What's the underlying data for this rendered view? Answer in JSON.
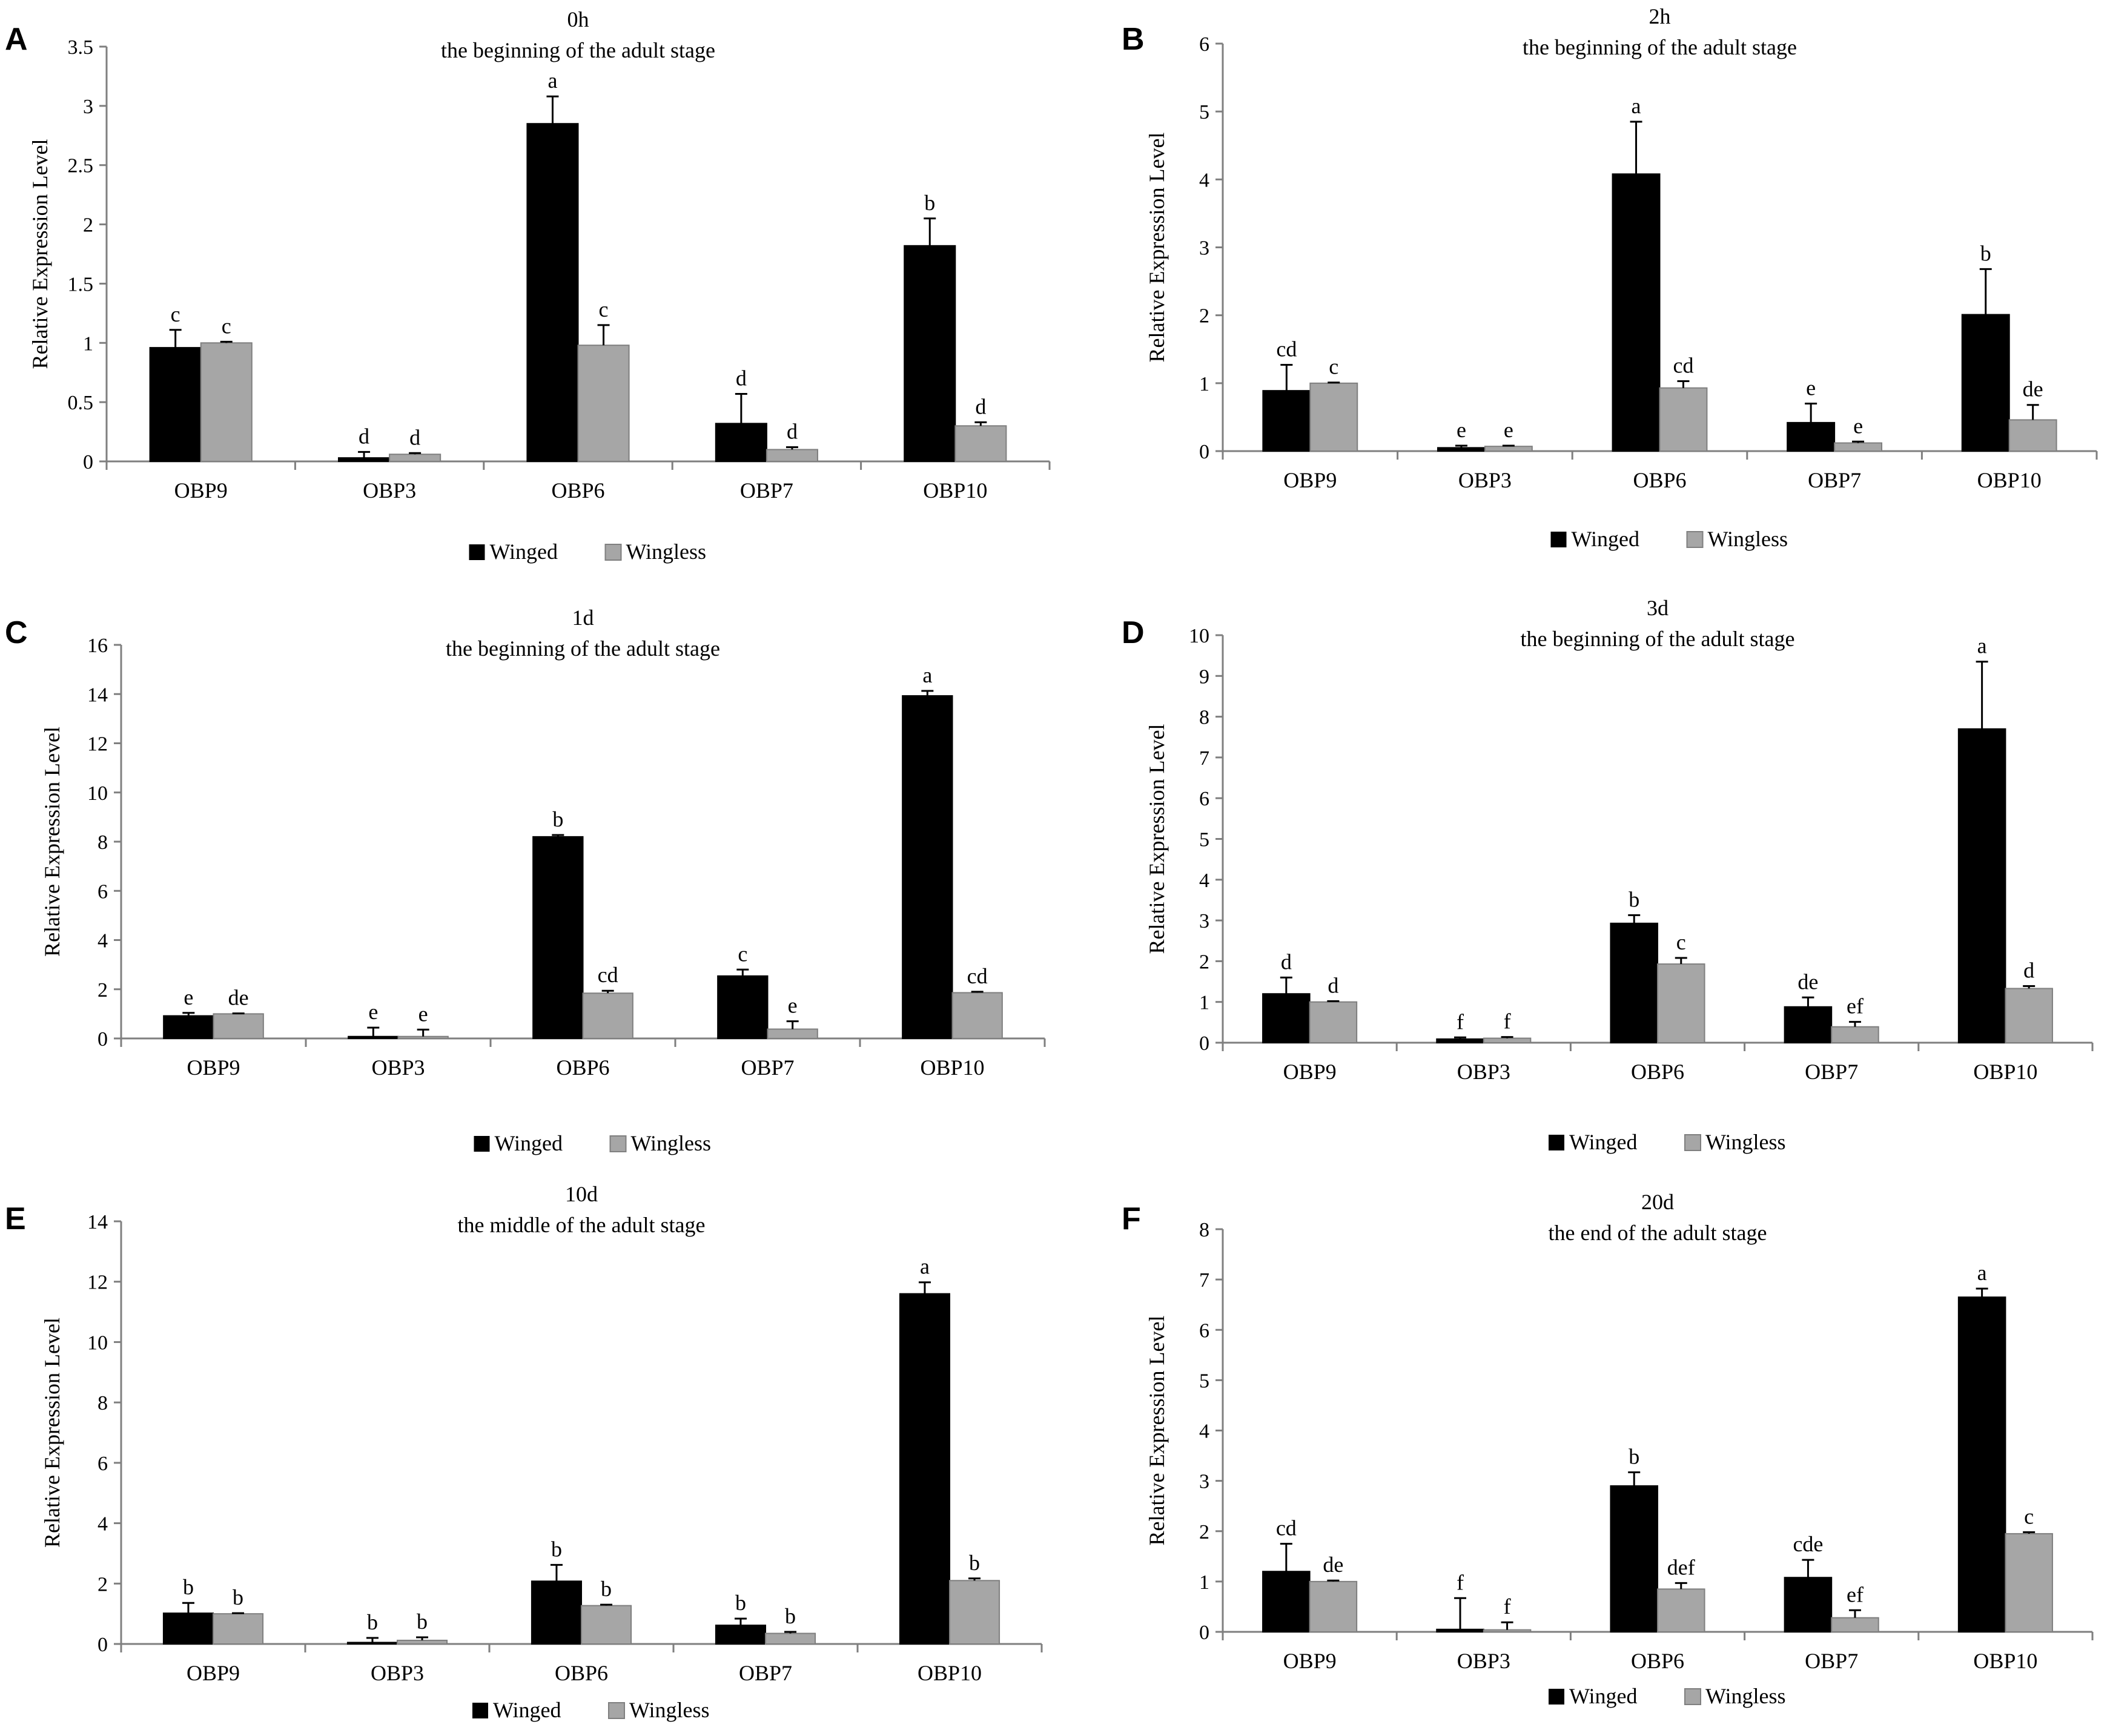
{
  "colors": {
    "winged": "#000000",
    "wingless": "#a6a6a6",
    "axis": "#7f7f7f"
  },
  "legend_labels": [
    "Winged",
    "Wingless"
  ],
  "chart_data": [
    {
      "type": "bar",
      "panel": "A",
      "title": "0h",
      "subtitle": "the beginning of the adult stage",
      "ylabel": "Relative Expression Level",
      "ylim": [
        0,
        3.5
      ],
      "yticks": [
        0,
        0.5,
        1,
        1.5,
        2,
        2.5,
        3,
        3.5
      ],
      "ytick_labels": [
        "0",
        "0.5",
        "1",
        "1.5",
        "2",
        "2.5",
        "3",
        "3.5"
      ],
      "categories": [
        "OBP9",
        "OBP3",
        "OBP6",
        "OBP7",
        "OBP10"
      ],
      "series": [
        {
          "name": "Winged",
          "values": [
            0.96,
            0.03,
            2.85,
            0.32,
            1.82
          ],
          "errors": [
            0.15,
            0.05,
            0.23,
            0.25,
            0.23
          ],
          "letters": [
            "c",
            "d",
            "a",
            "d",
            "b"
          ]
        },
        {
          "name": "Wingless",
          "values": [
            1.0,
            0.06,
            0.98,
            0.1,
            0.3
          ],
          "errors": [
            0.01,
            0.01,
            0.17,
            0.02,
            0.03
          ],
          "letters": [
            "c",
            "d",
            "c",
            "d",
            "d"
          ]
        }
      ],
      "legend": "bottom"
    },
    {
      "type": "bar",
      "panel": "B",
      "title": "2h",
      "subtitle": "the beginning of the adult stage",
      "ylabel": "Relative Expression Level",
      "ylim": [
        0,
        6
      ],
      "yticks": [
        0,
        1,
        2,
        3,
        4,
        5,
        6
      ],
      "ytick_labels": [
        "0",
        "1",
        "2",
        "3",
        "4",
        "5",
        "6"
      ],
      "categories": [
        "OBP9",
        "OBP3",
        "OBP6",
        "OBP7",
        "OBP10"
      ],
      "series": [
        {
          "name": "Winged",
          "values": [
            0.89,
            0.05,
            4.08,
            0.42,
            2.01
          ],
          "errors": [
            0.38,
            0.03,
            0.77,
            0.28,
            0.67
          ],
          "letters": [
            "cd",
            "e",
            "a",
            "e",
            "b"
          ]
        },
        {
          "name": "Wingless",
          "values": [
            1.0,
            0.07,
            0.93,
            0.12,
            0.46
          ],
          "errors": [
            0.01,
            0.01,
            0.1,
            0.02,
            0.22
          ],
          "letters": [
            "c",
            "e",
            "cd",
            "e",
            "de"
          ]
        }
      ],
      "legend": "bottom"
    },
    {
      "type": "bar",
      "panel": "C",
      "title": "1d",
      "subtitle": "the beginning of the adult stage",
      "ylabel": "Relative Expression Level",
      "ylim": [
        0,
        16
      ],
      "yticks": [
        0,
        2,
        4,
        6,
        8,
        10,
        12,
        14,
        16
      ],
      "ytick_labels": [
        "0",
        "2",
        "4",
        "6",
        "8",
        "10",
        "12",
        "14",
        "16"
      ],
      "categories": [
        "OBP9",
        "OBP3",
        "OBP6",
        "OBP7",
        "OBP10"
      ],
      "series": [
        {
          "name": "Winged",
          "values": [
            0.92,
            0.08,
            8.2,
            2.54,
            13.93
          ],
          "errors": [
            0.12,
            0.36,
            0.07,
            0.26,
            0.2
          ],
          "letters": [
            "e",
            "e",
            "b",
            "c",
            "a"
          ]
        },
        {
          "name": "Wingless",
          "values": [
            1.0,
            0.08,
            1.84,
            0.38,
            1.86
          ],
          "errors": [
            0.02,
            0.28,
            0.1,
            0.32,
            0.04
          ],
          "letters": [
            "de",
            "e",
            "cd",
            "e",
            "cd"
          ]
        }
      ],
      "legend": "bottom"
    },
    {
      "type": "bar",
      "panel": "D",
      "title": "3d",
      "subtitle": "the beginning of the adult stage",
      "ylabel": "Relative Expression Level",
      "ylim": [
        0,
        10
      ],
      "yticks": [
        0,
        1,
        2,
        3,
        4,
        5,
        6,
        7,
        8,
        9,
        10
      ],
      "ytick_labels": [
        "0",
        "1",
        "2",
        "3",
        "4",
        "5",
        "6",
        "7",
        "8",
        "9",
        "10"
      ],
      "categories": [
        "OBP9",
        "OBP3",
        "OBP6",
        "OBP7",
        "OBP10"
      ],
      "series": [
        {
          "name": "Winged",
          "values": [
            1.2,
            0.09,
            2.93,
            0.88,
            7.7
          ],
          "errors": [
            0.4,
            0.04,
            0.2,
            0.23,
            1.65
          ],
          "letters": [
            "d",
            "f",
            "b",
            "de",
            "a"
          ]
        },
        {
          "name": "Wingless",
          "values": [
            1.0,
            0.11,
            1.93,
            0.39,
            1.33
          ],
          "errors": [
            0.02,
            0.03,
            0.15,
            0.12,
            0.06
          ],
          "letters": [
            "d",
            "f",
            "c",
            "ef",
            "d"
          ]
        }
      ],
      "legend": "bottom"
    },
    {
      "type": "bar",
      "panel": "E",
      "title": "10d",
      "subtitle": "the middle of the adult stage",
      "ylabel": "Relative Expression Level",
      "ylim": [
        0,
        14
      ],
      "yticks": [
        0,
        2,
        4,
        6,
        8,
        10,
        12,
        14
      ],
      "ytick_labels": [
        "0",
        "2",
        "4",
        "6",
        "8",
        "10",
        "12",
        "14"
      ],
      "categories": [
        "OBP9",
        "OBP3",
        "OBP6",
        "OBP7",
        "OBP10"
      ],
      "series": [
        {
          "name": "Winged",
          "values": [
            1.02,
            0.05,
            2.08,
            0.62,
            11.6
          ],
          "errors": [
            0.34,
            0.15,
            0.54,
            0.22,
            0.38
          ],
          "letters": [
            "b",
            "b",
            "b",
            "b",
            "a"
          ]
        },
        {
          "name": "Wingless",
          "values": [
            1.0,
            0.12,
            1.27,
            0.35,
            2.1
          ],
          "errors": [
            0.02,
            0.1,
            0.03,
            0.05,
            0.07
          ],
          "letters": [
            "b",
            "b",
            "b",
            "b",
            "b"
          ]
        }
      ],
      "legend": "bottom"
    },
    {
      "type": "bar",
      "panel": "F",
      "title": "20d",
      "subtitle": "the end of the adult stage",
      "ylabel": "Relative Expression Level",
      "ylim": [
        0,
        8
      ],
      "yticks": [
        0,
        1,
        2,
        3,
        4,
        5,
        6,
        7,
        8
      ],
      "ytick_labels": [
        "0",
        "1",
        "2",
        "3",
        "4",
        "5",
        "6",
        "7",
        "8"
      ],
      "categories": [
        "OBP9",
        "OBP3",
        "OBP6",
        "OBP7",
        "OBP10"
      ],
      "series": [
        {
          "name": "Winged",
          "values": [
            1.2,
            0.05,
            2.9,
            1.08,
            6.65
          ],
          "errors": [
            0.55,
            0.62,
            0.27,
            0.35,
            0.17
          ],
          "letters": [
            "cd",
            "f",
            "b",
            "cde",
            "a"
          ]
        },
        {
          "name": "Wingless",
          "values": [
            1.0,
            0.04,
            0.85,
            0.28,
            1.95
          ],
          "errors": [
            0.02,
            0.15,
            0.12,
            0.15,
            0.03
          ],
          "letters": [
            "de",
            "f",
            "def",
            "ef",
            "c"
          ]
        }
      ],
      "legend": "bottom"
    }
  ]
}
